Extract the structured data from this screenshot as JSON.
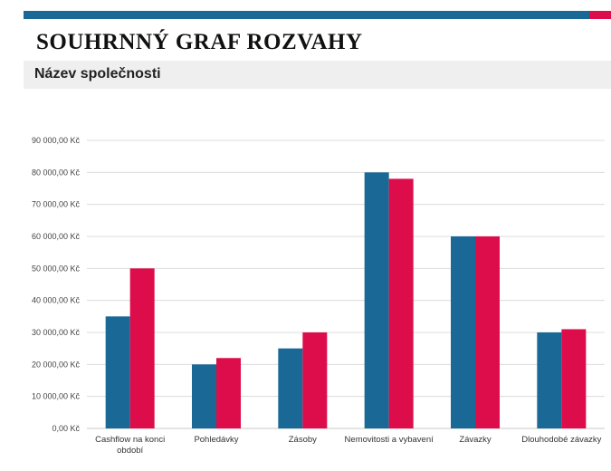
{
  "header": {
    "title": "SOUHRNNÝ GRAF ROZVAHY",
    "subtitle": "Název společnosti",
    "colors": {
      "primary": "#1a6896",
      "accent": "#dc0d4a",
      "band": "#efefef"
    }
  },
  "chart_data": {
    "type": "bar",
    "categories": [
      [
        "Cashflow na konci",
        "období"
      ],
      [
        "Pohledávky"
      ],
      [
        "Zásoby"
      ],
      [
        "Nemovitosti a vybavení"
      ],
      [
        "Závazky"
      ],
      [
        "Dlouhodobé závazky"
      ]
    ],
    "series": [
      {
        "color": "#1a6896",
        "values": [
          35000,
          20000,
          25000,
          80000,
          60000,
          30000
        ]
      },
      {
        "color": "#dc0d4a",
        "values": [
          50000,
          22000,
          30000,
          78000,
          60000,
          31000
        ]
      }
    ],
    "yticks": [
      "0,00 Kč",
      "10 000,00 Kč",
      "20 000,00 Kč",
      "30 000,00 Kč",
      "40 000,00 Kč",
      "50 000,00 Kč",
      "60 000,00 Kč",
      "70 000,00 Kč",
      "80 000,00 Kč",
      "90 000,00 Kč"
    ],
    "ylim": [
      0,
      90000
    ],
    "grid": true,
    "legend": "none"
  }
}
